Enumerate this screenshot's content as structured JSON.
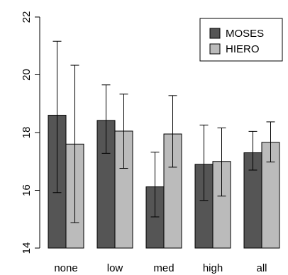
{
  "chart_data": {
    "type": "bar",
    "categories": [
      "none",
      "low",
      "med",
      "high",
      "all"
    ],
    "series": [
      {
        "name": "MOSES",
        "color": "#555555",
        "values": [
          18.6,
          18.42,
          16.12,
          16.9,
          17.3
        ],
        "error_low": [
          15.92,
          17.28,
          15.08,
          15.65,
          16.7
        ],
        "error_high": [
          21.16,
          19.65,
          17.32,
          18.26,
          18.04
        ]
      },
      {
        "name": "HIERO",
        "color": "#bbbbbb",
        "values": [
          17.6,
          18.05,
          17.95,
          17.0,
          17.66
        ],
        "error_low": [
          14.88,
          16.76,
          16.8,
          15.8,
          16.98
        ],
        "error_high": [
          20.33,
          19.33,
          19.28,
          18.16,
          18.37
        ]
      }
    ],
    "title": "",
    "xlabel": "",
    "ylabel": "",
    "ylim": [
      14,
      22
    ],
    "yticks": [
      "14",
      "16",
      "18",
      "20",
      "22"
    ],
    "grid": false,
    "legend_position": "top-right"
  }
}
